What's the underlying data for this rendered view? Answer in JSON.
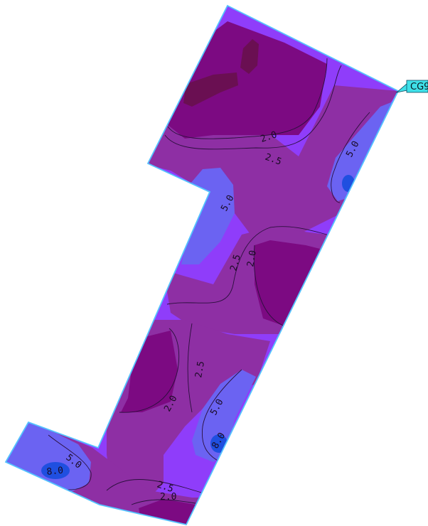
{
  "map": {
    "colors": {
      "background": "#ffffff",
      "band_low": "#6a0f52",
      "band_1_5_to_2_0": "#7c0a82",
      "band_2_0_to_2_5": "#8e2fa4",
      "band_2_5_to_5_0": "#8f3dfa",
      "band_5_0_to_8_0": "#6b63f2",
      "band_high": "#1f4fe0",
      "outline": "#54c2ff",
      "contour_line": "#2a0f3c"
    },
    "contour_labels": [
      "2.0",
      "2.5",
      "5.0",
      "2.5",
      "2.0",
      "2.5",
      "2.0",
      "5.0",
      "5.0",
      "8.0",
      "2.5",
      "2.0",
      "5.0",
      "8.0"
    ],
    "region_tag": "CG9"
  }
}
